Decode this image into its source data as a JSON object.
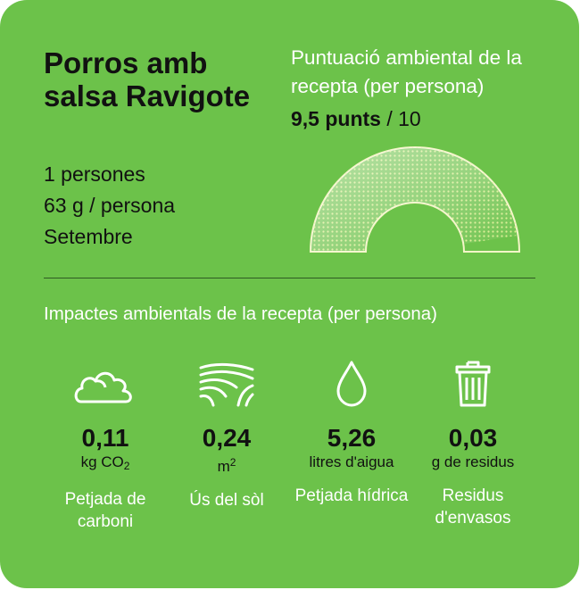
{
  "recipe": {
    "title": "Porros amb salsa Ravigote",
    "servings": "1 persones",
    "weight": "63 g / persona",
    "month": "Setembre"
  },
  "score": {
    "label": "Puntuació ambiental de la recepta (per persona)",
    "value_text": "9,5 punts",
    "out_of": "/ 10",
    "value": 9.5,
    "max": 10
  },
  "impacts": {
    "title": "Impactes ambientals de la recepta (per persona)",
    "carbon": {
      "value": "0,11",
      "unit": "kg CO",
      "unit_sub": "2",
      "label": "Petjada de carboni",
      "icon": "cloud-icon"
    },
    "land": {
      "value": "0,24",
      "unit": "m",
      "unit_sup": "2",
      "label": "Ús del sòl",
      "icon": "field-icon"
    },
    "water": {
      "value": "5,26",
      "unit": "litres d'aigua",
      "label": "Petjada hídrica",
      "icon": "water-drop-icon"
    },
    "waste": {
      "value": "0,03",
      "unit": "g de residus",
      "label": "Residus d'envasos",
      "icon": "trash-bin-icon"
    }
  },
  "colors": {
    "background": "#6cc24a",
    "gauge_fill": "#f5f5c8",
    "gauge_dots": "#d9ec8c",
    "text_dark": "#111111",
    "text_light": "#ffffff"
  }
}
